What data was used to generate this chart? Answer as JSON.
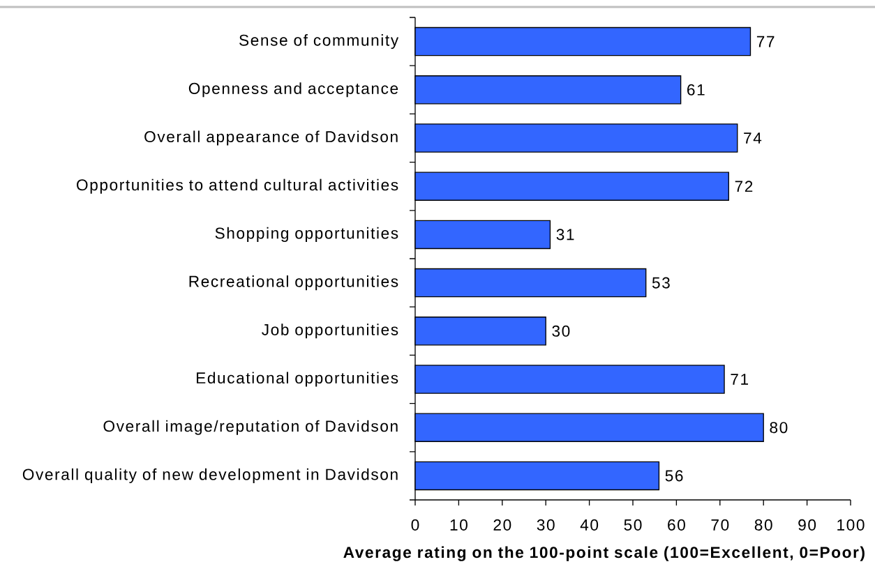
{
  "chart_data": {
    "type": "bar",
    "orientation": "horizontal",
    "categories": [
      "Sense of community",
      "Openness and acceptance",
      "Overall appearance of Davidson",
      "Opportunities to attend cultural activities",
      "Shopping opportunities",
      "Recreational opportunities",
      "Job opportunities",
      "Educational opportunities",
      "Overall image/reputation of Davidson",
      "Overall quality of new development in Davidson"
    ],
    "values": [
      77,
      61,
      74,
      72,
      31,
      53,
      30,
      71,
      80,
      56
    ],
    "color": "#3366ff",
    "xlim": [
      0,
      100
    ],
    "xticks": [
      0,
      10,
      20,
      30,
      40,
      50,
      60,
      70,
      80,
      90,
      100
    ],
    "xlabel": "Average rating on the 100-point scale (100=Excellent, 0=Poor)",
    "data_labels": true
  }
}
